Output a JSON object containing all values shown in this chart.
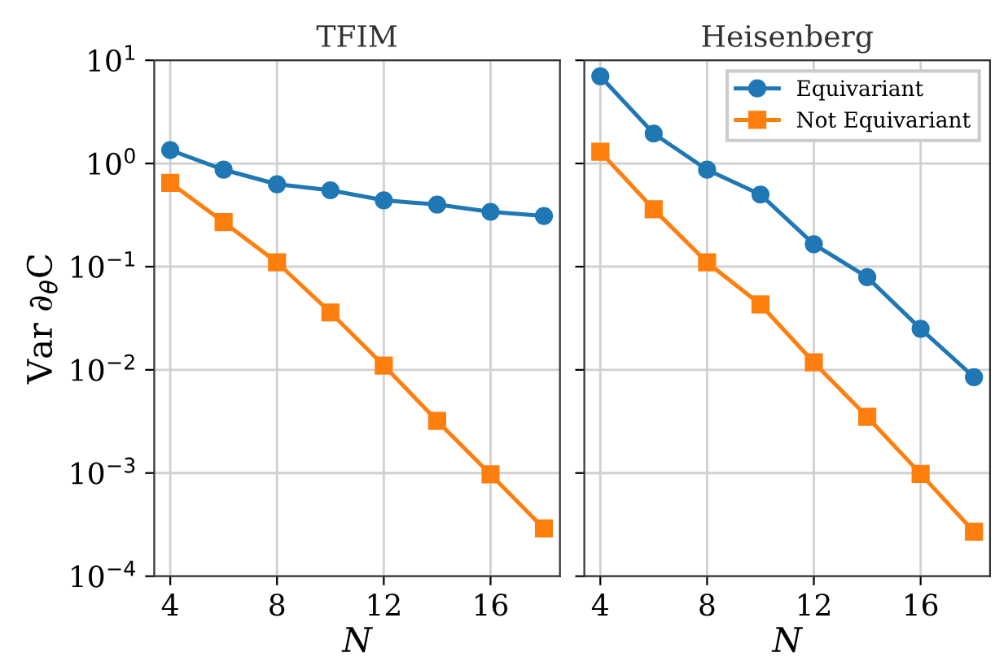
{
  "chart_data": [
    {
      "type": "line",
      "title": "TFIM",
      "xlabel": "N",
      "ylabel": "Var ∂$_{θ}$C",
      "x": [
        4,
        6,
        8,
        10,
        12,
        14,
        16,
        18
      ],
      "xlim": [
        3.4,
        18.6
      ],
      "xticks": [
        4,
        8,
        12,
        16
      ],
      "ylim": [
        0.0001,
        10
      ],
      "yticks": [
        {
          "value": 0.0001,
          "label": "10$^{−4}$"
        },
        {
          "value": 0.001,
          "label": "10$^{−3}$"
        },
        {
          "value": 0.01,
          "label": "10$^{−2}$"
        },
        {
          "value": 0.1,
          "label": "10$^{−1}$"
        },
        {
          "value": 1,
          "label": "10$^{0}$"
        },
        {
          "value": 10,
          "label": "10$^{1}$"
        }
      ],
      "log": "y",
      "grid": true,
      "legend": false,
      "series": [
        {
          "color": "#1f77b4",
          "marker": "circle",
          "values": [
            1.35,
            0.87,
            0.63,
            0.55,
            0.44,
            0.4,
            0.34,
            0.31
          ]
        },
        {
          "color": "#ff7f0e",
          "marker": "square",
          "values": [
            0.65,
            0.27,
            0.11,
            0.036,
            0.011,
            0.0032,
            0.00097,
            0.00029
          ]
        }
      ]
    },
    {
      "type": "line",
      "title": "Heisenberg",
      "xlabel": "N",
      "x": [
        4,
        6,
        8,
        10,
        12,
        14,
        16,
        18
      ],
      "xlim": [
        3.4,
        18.6
      ],
      "xticks": [
        4,
        8,
        12,
        16
      ],
      "ylim": [
        0.0001,
        10
      ],
      "yticks": [
        {
          "value": 0.0001,
          "label": null
        },
        {
          "value": 0.001,
          "label": null
        },
        {
          "value": 0.01,
          "label": null
        },
        {
          "value": 0.1,
          "label": null
        },
        {
          "value": 1,
          "label": null
        },
        {
          "value": 10,
          "label": null
        }
      ],
      "log": "y",
      "grid": true,
      "legend": "top right",
      "tick_labels": "x",
      "series": [
        {
          "name": "Equivariant",
          "color": "#1f77b4",
          "marker": "circle",
          "values": [
            7.0,
            1.95,
            0.87,
            0.5,
            0.165,
            0.079,
            0.025,
            0.0085
          ]
        },
        {
          "name": "Not Equivariant",
          "color": "#ff7f0e",
          "marker": "square",
          "values": [
            1.3,
            0.36,
            0.11,
            0.043,
            0.0118,
            0.0035,
            0.00098,
            0.00027
          ]
        }
      ]
    }
  ]
}
